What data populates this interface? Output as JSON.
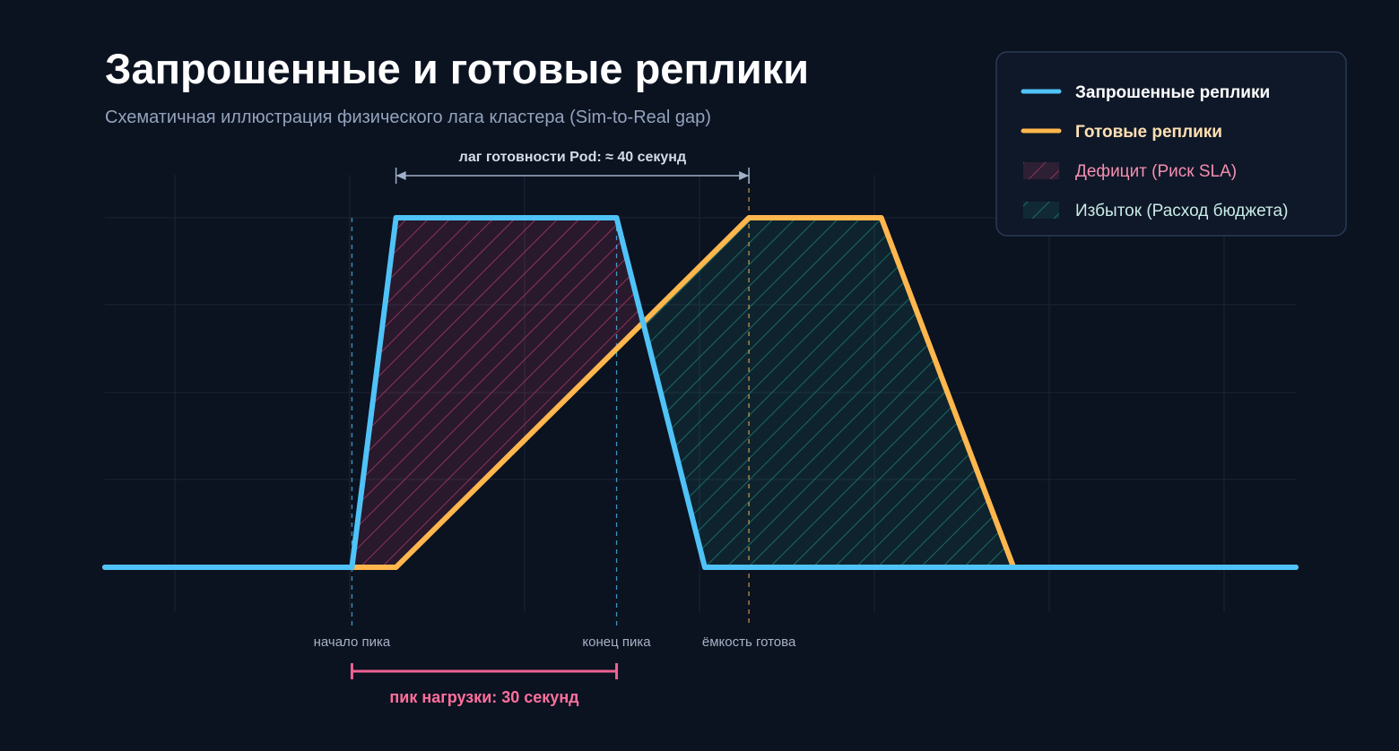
{
  "header": {
    "title": "Запрошенные и готовые реплики",
    "subtitle": "Схематичная иллюстрация физического лага кластера (Sim-to-Real gap)"
  },
  "colors": {
    "background": "#0b1220",
    "requested": "#4fc3f7",
    "ready": "#ffb74d",
    "deficit": "#e5447e",
    "surplus": "#2bbfa6",
    "peak_annotation": "#f06292",
    "grid": "#1a2536"
  },
  "chart_data": {
    "type": "line",
    "xlim": [
      0,
      135
    ],
    "ylim": [
      0,
      100
    ],
    "grid": true,
    "legend_position": "top-right",
    "series": [
      {
        "name": "Запрошенные реплики",
        "key": "requested",
        "x": [
          0,
          28,
          33,
          58,
          68,
          135
        ],
        "y": [
          0,
          0,
          100,
          100,
          0,
          0
        ]
      },
      {
        "name": "Готовые реплики",
        "key": "ready",
        "x": [
          0,
          33,
          73,
          88,
          103,
          135
        ],
        "y": [
          0,
          0,
          100,
          100,
          0,
          0
        ]
      }
    ],
    "areas": [
      {
        "name": "Дефицит (Риск SLA)",
        "key": "deficit"
      },
      {
        "name": "Избыток (Расход бюджета)",
        "key": "surplus"
      }
    ],
    "markers": [
      {
        "key": "peak_start",
        "x": 28,
        "label": "начало пика",
        "color": "#4fc3f7"
      },
      {
        "key": "peak_end",
        "x": 58,
        "label": "конец пика",
        "color": "#4fc3f7"
      },
      {
        "key": "capacity_ready",
        "x": 73,
        "label": "ёмкость готова",
        "color": "#ffb74d"
      }
    ],
    "annotations": {
      "lag": {
        "x_from": 33,
        "x_to": 73,
        "label": "лаг готовности Pod: ≈ 40 секунд"
      },
      "peak": {
        "x_from": 28,
        "x_to": 58,
        "label": "пик нагрузки: 30 секунд"
      }
    }
  }
}
